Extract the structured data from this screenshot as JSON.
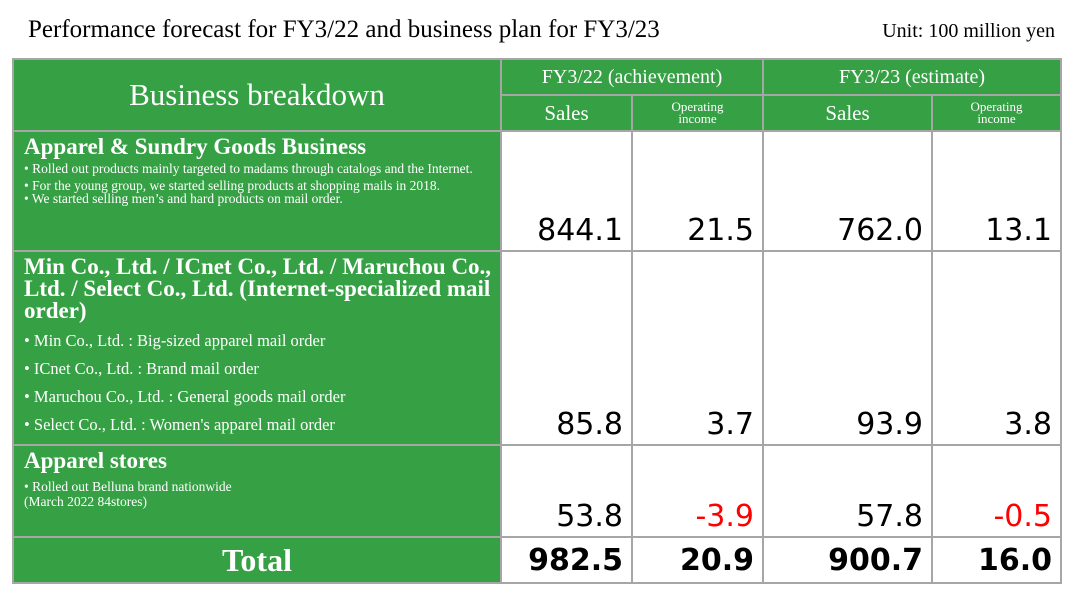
{
  "title": "Performance forecast for FY3/22 and business plan for FY3/23",
  "unit": "Unit: 100 million yen",
  "header": {
    "breakdown": "Business breakdown",
    "period1": "FY3/22 (achievement)",
    "period2": "FY3/23 (estimate)",
    "sales": "Sales",
    "operating_line1": "Operating",
    "operating_line2": "income"
  },
  "rows": [
    {
      "heading": "Apparel & Sundry Goods Business",
      "bullets": [
        "• Rolled out products mainly targeted to madams through catalogs and the Internet.",
        "• For the young group, we started selling products at shopping mails in 2018.",
        "• We started selling men’s and hard products on mail order."
      ],
      "values": [
        "844.1",
        "21.5",
        "762.0",
        "13.1"
      ]
    },
    {
      "heading": "Min Co., Ltd. / ICnet Co., Ltd. / Maruchou Co., Ltd. / Select Co., Ltd. (Internet-specialized mail order)",
      "bullets": [
        "• Min Co., Ltd. : Big-sized apparel mail order",
        "• ICnet Co., Ltd. : Brand mail order",
        "• Maruchou Co., Ltd. : General goods mail order",
        "• Select Co., Ltd. : Women's apparel mail order"
      ],
      "values": [
        "85.8",
        "3.7",
        "93.9",
        "3.8"
      ]
    },
    {
      "heading": "Apparel stores",
      "bullets": [
        "• Rolled out Belluna brand nationwide",
        "(March 2022 84stores)"
      ],
      "values": [
        "53.8",
        "-3.9",
        "57.8",
        "-0.5"
      ]
    }
  ],
  "total": {
    "label": "Total",
    "values": [
      "982.5",
      "20.9",
      "900.7",
      "16.0"
    ]
  },
  "colors": {
    "header_green": "#36a045",
    "negative": "#ff0000",
    "grid": "#a6a6a6"
  }
}
